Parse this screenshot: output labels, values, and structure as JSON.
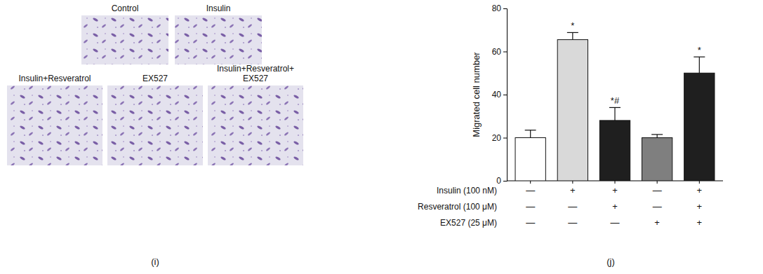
{
  "image_panel": {
    "label": "(i)",
    "captions": [
      "Control",
      "Insulin",
      "Insulin+Resveratrol",
      "EX527",
      "Insulin+Resveratrol+EX527"
    ]
  },
  "chart_data": {
    "type": "bar",
    "panel_label": "(j)",
    "y_label": "Migrated cell number",
    "categories": [
      null,
      null,
      null,
      null,
      null
    ],
    "values": [
      20,
      65.5,
      28,
      20,
      50
    ],
    "errors": [
      3.5,
      3.3,
      6,
      1.5,
      7.5
    ],
    "annotations": [
      null,
      "*",
      "*#",
      null,
      "*"
    ],
    "colors": [
      "#ffffff",
      "#d9d9d9",
      "#1f1f1f",
      "#7f7f7f",
      "#1f1f1f"
    ],
    "ylim": [
      0,
      80
    ],
    "yticks": [
      0,
      20,
      40,
      60,
      80
    ],
    "treatments": [
      {
        "name": "Insulin (100 nM)",
        "marks": [
          "—",
          "+",
          "+",
          "—",
          "+"
        ]
      },
      {
        "name": "Resveratrol (100 μM)",
        "marks": [
          "—",
          "—",
          "+",
          "—",
          "+"
        ]
      },
      {
        "name": "EX527 (25 μM)",
        "marks": [
          "—",
          "—",
          "—",
          "+",
          "+"
        ]
      }
    ]
  }
}
